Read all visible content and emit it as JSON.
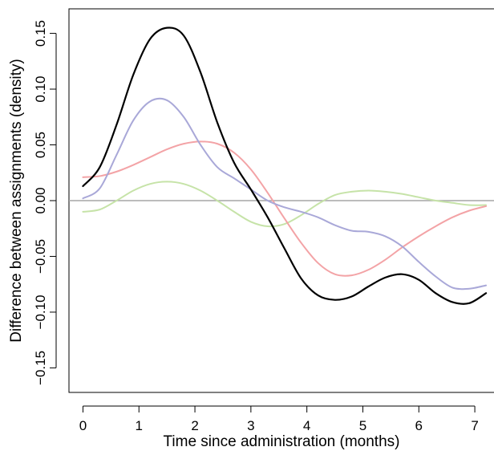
{
  "chart_data": {
    "type": "line",
    "title": "",
    "xlabel": "Time since administration (months)",
    "ylabel": "Difference between assignments (density)",
    "xlim": [
      -0.25,
      7.4
    ],
    "ylim": [
      -0.172,
      0.172
    ],
    "x_ticks": [
      0,
      1,
      2,
      3,
      4,
      5,
      6,
      7
    ],
    "y_ticks": [
      -0.15,
      -0.1,
      -0.05,
      0.0,
      0.05,
      0.1,
      0.15
    ],
    "x_tick_labels": [
      "0",
      "1",
      "2",
      "3",
      "4",
      "5",
      "6",
      "7"
    ],
    "y_tick_labels": [
      "−0.15",
      "−0.10",
      "−0.05",
      "0.00",
      "0.05",
      "0.10",
      "0.15"
    ],
    "reference_line": {
      "y": 0,
      "color": "#a6a6a6"
    },
    "legend": "none",
    "grid": false,
    "series": [
      {
        "color": "#000000",
        "x": [
          0,
          0.3,
          0.6,
          0.9,
          1.2,
          1.5,
          1.8,
          2.1,
          2.4,
          2.7,
          3.0,
          3.3,
          3.6,
          3.9,
          4.2,
          4.5,
          4.8,
          5.1,
          5.4,
          5.7,
          6.0,
          6.3,
          6.6,
          6.9,
          7.2
        ],
        "values": [
          0.013,
          0.03,
          0.068,
          0.113,
          0.145,
          0.155,
          0.148,
          0.115,
          0.07,
          0.034,
          0.01,
          -0.015,
          -0.043,
          -0.07,
          -0.085,
          -0.089,
          -0.086,
          -0.077,
          -0.069,
          -0.066,
          -0.071,
          -0.083,
          -0.091,
          -0.092,
          -0.083
        ]
      },
      {
        "color": "#a9a8d8",
        "x": [
          0,
          0.3,
          0.6,
          0.9,
          1.2,
          1.5,
          1.8,
          2.1,
          2.4,
          2.7,
          3.0,
          3.3,
          3.6,
          3.9,
          4.2,
          4.5,
          4.8,
          5.1,
          5.4,
          5.7,
          6.0,
          6.3,
          6.6,
          6.9,
          7.2
        ],
        "values": [
          0.002,
          0.011,
          0.041,
          0.072,
          0.089,
          0.09,
          0.075,
          0.05,
          0.03,
          0.02,
          0.01,
          0.0,
          -0.006,
          -0.01,
          -0.015,
          -0.022,
          -0.027,
          -0.028,
          -0.032,
          -0.041,
          -0.055,
          -0.068,
          -0.078,
          -0.079,
          -0.076
        ]
      },
      {
        "color": "#f3a3a6",
        "x": [
          0,
          0.3,
          0.6,
          0.9,
          1.2,
          1.5,
          1.8,
          2.1,
          2.4,
          2.7,
          3.0,
          3.3,
          3.6,
          3.9,
          4.2,
          4.5,
          4.8,
          5.1,
          5.4,
          5.7,
          6.0,
          6.3,
          6.6,
          6.9,
          7.2
        ],
        "values": [
          0.021,
          0.022,
          0.026,
          0.032,
          0.039,
          0.046,
          0.051,
          0.053,
          0.051,
          0.043,
          0.028,
          0.007,
          -0.016,
          -0.038,
          -0.056,
          -0.066,
          -0.067,
          -0.062,
          -0.053,
          -0.042,
          -0.032,
          -0.023,
          -0.015,
          -0.009,
          -0.005
        ]
      },
      {
        "color": "#c6e3a8",
        "x": [
          0,
          0.3,
          0.6,
          0.9,
          1.2,
          1.5,
          1.8,
          2.1,
          2.4,
          2.7,
          3.0,
          3.3,
          3.6,
          3.9,
          4.2,
          4.5,
          4.8,
          5.1,
          5.4,
          5.7,
          6.0,
          6.3,
          6.6,
          6.9,
          7.2
        ],
        "values": [
          -0.01,
          -0.008,
          0.0,
          0.009,
          0.015,
          0.017,
          0.015,
          0.009,
          0.0,
          -0.01,
          -0.019,
          -0.023,
          -0.021,
          -0.013,
          -0.003,
          0.005,
          0.008,
          0.009,
          0.008,
          0.006,
          0.003,
          0.0,
          -0.002,
          -0.004,
          -0.004
        ]
      }
    ]
  }
}
